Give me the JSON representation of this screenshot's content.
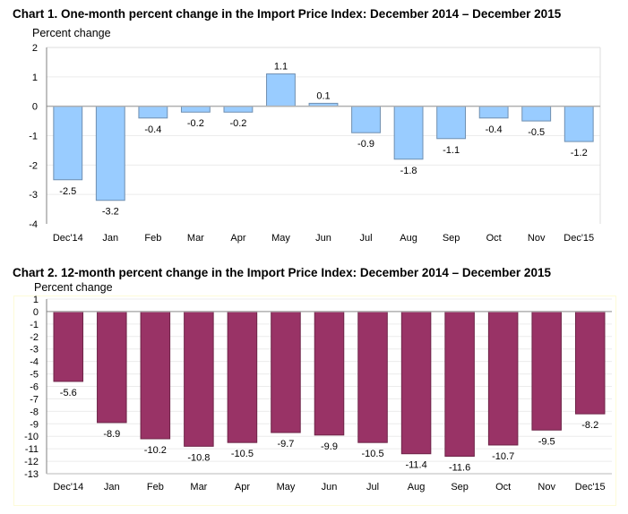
{
  "chart_data": [
    {
      "type": "bar",
      "title": "Chart 1. One-month percent change in the Import Price Index: December 2014 – December 2015",
      "xlabel": "",
      "ylabel": "Percent change",
      "categories": [
        "Dec'14",
        "Jan",
        "Feb",
        "Mar",
        "Apr",
        "May",
        "Jun",
        "Jul",
        "Aug",
        "Sep",
        "Oct",
        "Nov",
        "Dec'15"
      ],
      "values": [
        -2.5,
        -3.2,
        -0.4,
        -0.2,
        -0.2,
        1.1,
        0.1,
        -0.9,
        -1.8,
        -1.1,
        -0.4,
        -0.5,
        -1.2
      ],
      "data_labels": [
        "-2.5",
        "-3.2",
        "-0.4",
        "-0.2",
        "-0.2",
        "1.1",
        "0.1",
        "-0.9",
        "-1.8",
        "-1.1",
        "-0.4",
        "-0.5",
        "-1.2"
      ],
      "ylim": [
        -4,
        2
      ],
      "yticks": [
        "2",
        "1",
        "0",
        "-1",
        "-2",
        "-3",
        "-4"
      ],
      "grid": true,
      "legend": "none",
      "bar_color": "#99ccff",
      "bar_edge_color": "#6f8fb0"
    },
    {
      "type": "bar",
      "title": "Chart 2. 12-month percent change in the Import Price Index: December 2014 – December 2015",
      "xlabel": "",
      "ylabel": "Percent change",
      "categories": [
        "Dec'14",
        "Jan",
        "Feb",
        "Mar",
        "Apr",
        "May",
        "Jun",
        "Jul",
        "Aug",
        "Sep",
        "Oct",
        "Nov",
        "Dec'15"
      ],
      "values": [
        -5.6,
        -8.9,
        -10.2,
        -10.8,
        -10.5,
        -9.7,
        -9.9,
        -10.5,
        -11.4,
        -11.6,
        -10.7,
        -9.5,
        -8.2
      ],
      "data_labels": [
        "-5.6",
        "-8.9",
        "-10.2",
        "-10.8",
        "-10.5",
        "-9.7",
        "-9.9",
        "-10.5",
        "-11.4",
        "-11.6",
        "-10.7",
        "-9.5",
        "-8.2"
      ],
      "ylim": [
        -13,
        1
      ],
      "yticks": [
        "1",
        "0",
        "-1",
        "-2",
        "-3",
        "-4",
        "-5",
        "-6",
        "-7",
        "-8",
        "-9",
        "-10",
        "-11",
        "-12",
        "-13"
      ],
      "grid": true,
      "legend": "none",
      "bar_color": "#993366",
      "bar_edge_color": "#6e2448"
    }
  ]
}
